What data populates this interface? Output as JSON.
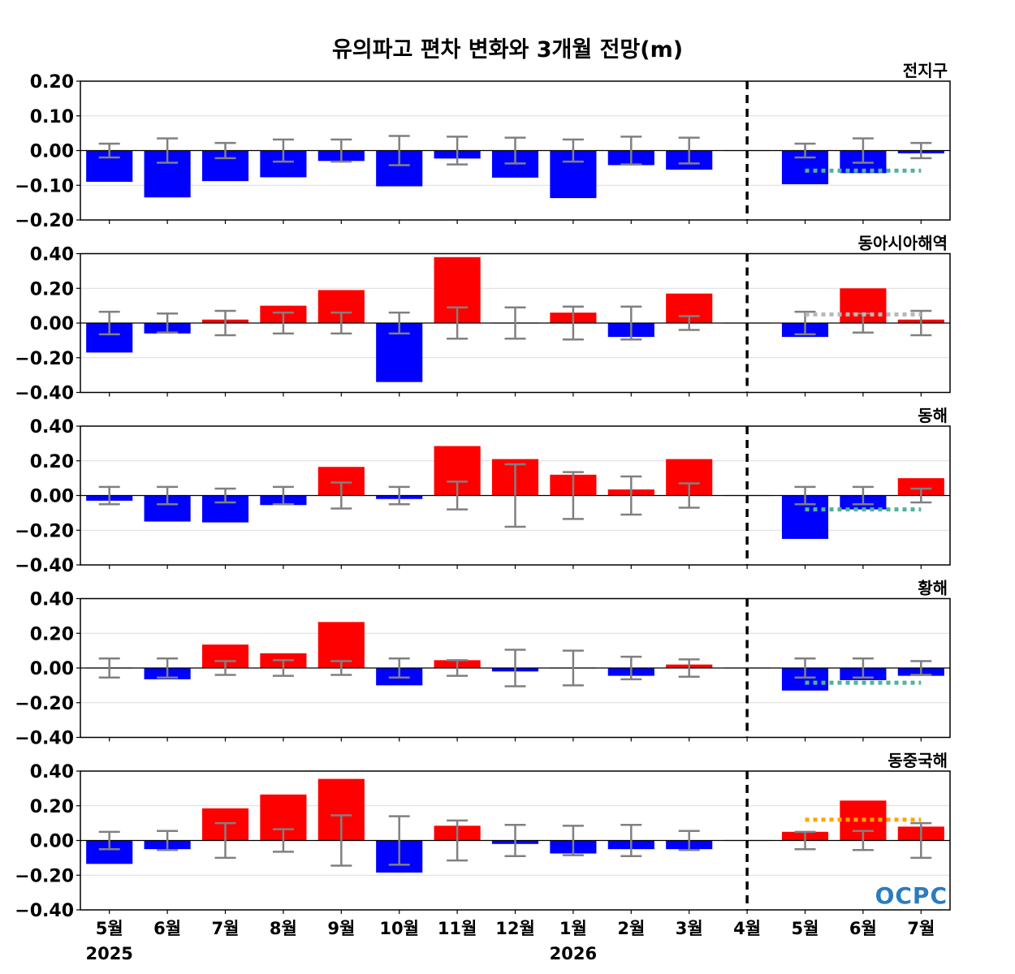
{
  "title": "유의파고 편차 변화와 3개월 전망(m)",
  "logo_text": "OCPC",
  "colors": {
    "positive": "#ff0000",
    "negative": "#0000ff",
    "errorbar": "#808080",
    "forecast_negative": "#4fb39b",
    "forecast_neutral": "#b8b8b8",
    "forecast_positive": "#ffa500",
    "divider": "#000000"
  },
  "chart_data": [
    {
      "type": "bar",
      "title": "전지구",
      "categories": [
        "5월",
        "6월",
        "7월",
        "8월",
        "9월",
        "10월",
        "11월",
        "12월",
        "1월",
        "2월",
        "3월",
        "4월",
        "5월",
        "6월",
        "7월"
      ],
      "values": [
        -0.09,
        -0.135,
        -0.088,
        -0.077,
        -0.03,
        -0.103,
        -0.023,
        -0.078,
        -0.137,
        -0.042,
        -0.055,
        0.0,
        -0.097,
        -0.065,
        -0.008
      ],
      "error_half_width": [
        0.02,
        0.035,
        0.022,
        0.032,
        0.032,
        0.042,
        0.04,
        0.037,
        0.032,
        0.04,
        0.037,
        null,
        0.02,
        0.035,
        0.022
      ],
      "forecast_line": {
        "from": "5월",
        "to": "7월",
        "value": -0.058,
        "color": "forecast_negative"
      },
      "ylim": [
        -0.2,
        0.2
      ],
      "yticks": [
        "0.20",
        "0.10",
        "0.00",
        "−0.10",
        "−0.20"
      ],
      "ytick_values": [
        0.2,
        0.1,
        0.0,
        -0.1,
        -0.2
      ]
    },
    {
      "type": "bar",
      "title": "동아시아해역",
      "categories": [
        "5월",
        "6월",
        "7월",
        "8월",
        "9월",
        "10월",
        "11월",
        "12월",
        "1월",
        "2월",
        "3월",
        "4월",
        "5월",
        "6월",
        "7월"
      ],
      "values": [
        -0.17,
        -0.06,
        0.02,
        0.1,
        0.19,
        -0.34,
        0.38,
        0.0,
        0.06,
        -0.08,
        0.17,
        0.0,
        -0.08,
        0.2,
        0.02
      ],
      "error_half_width": [
        0.065,
        0.055,
        0.07,
        0.06,
        0.06,
        0.06,
        0.09,
        0.09,
        0.095,
        0.095,
        0.04,
        null,
        0.065,
        0.055,
        0.07
      ],
      "forecast_line": {
        "from": "5월",
        "to": "7월",
        "value": 0.05,
        "color": "forecast_neutral"
      },
      "ylim": [
        -0.4,
        0.4
      ],
      "yticks": [
        "0.40",
        "0.20",
        "0.00",
        "−0.20",
        "−0.40"
      ],
      "ytick_values": [
        0.4,
        0.2,
        0.0,
        -0.2,
        -0.4
      ]
    },
    {
      "type": "bar",
      "title": "동해",
      "categories": [
        "5월",
        "6월",
        "7월",
        "8월",
        "9월",
        "10월",
        "11월",
        "12월",
        "1월",
        "2월",
        "3월",
        "4월",
        "5월",
        "6월",
        "7월"
      ],
      "values": [
        -0.03,
        -0.15,
        -0.155,
        -0.055,
        0.165,
        -0.02,
        0.285,
        0.21,
        0.12,
        0.035,
        0.21,
        0.0,
        -0.25,
        -0.08,
        0.1
      ],
      "error_half_width": [
        0.05,
        0.05,
        0.04,
        0.05,
        0.075,
        0.05,
        0.08,
        0.18,
        0.135,
        0.11,
        0.07,
        null,
        0.05,
        0.05,
        0.04
      ],
      "forecast_line": {
        "from": "5월",
        "to": "7월",
        "value": -0.08,
        "color": "forecast_negative"
      },
      "ylim": [
        -0.4,
        0.4
      ],
      "yticks": [
        "0.40",
        "0.20",
        "0.00",
        "−0.20",
        "−0.40"
      ],
      "ytick_values": [
        0.4,
        0.2,
        0.0,
        -0.2,
        -0.4
      ]
    },
    {
      "type": "bar",
      "title": "황해",
      "categories": [
        "5월",
        "6월",
        "7월",
        "8월",
        "9월",
        "10월",
        "11월",
        "12월",
        "1월",
        "2월",
        "3월",
        "4월",
        "5월",
        "6월",
        "7월"
      ],
      "values": [
        0.0,
        -0.065,
        0.135,
        0.085,
        0.265,
        -0.1,
        0.045,
        -0.02,
        0.0,
        -0.045,
        0.02,
        0.0,
        -0.13,
        -0.07,
        -0.045
      ],
      "error_half_width": [
        0.055,
        0.055,
        0.04,
        0.045,
        0.04,
        0.055,
        0.045,
        0.105,
        0.1,
        0.065,
        0.05,
        null,
        0.055,
        0.055,
        0.04
      ],
      "forecast_line": {
        "from": "5월",
        "to": "7월",
        "value": -0.085,
        "color": "forecast_negative"
      },
      "ylim": [
        -0.4,
        0.4
      ],
      "yticks": [
        "0.40",
        "0.20",
        "0.00",
        "−0.20",
        "−0.40"
      ],
      "ytick_values": [
        0.4,
        0.2,
        0.0,
        -0.2,
        -0.4
      ]
    },
    {
      "type": "bar",
      "title": "동중국해",
      "categories": [
        "5월",
        "6월",
        "7월",
        "8월",
        "9월",
        "10월",
        "11월",
        "12월",
        "1월",
        "2월",
        "3월",
        "4월",
        "5월",
        "6월",
        "7월"
      ],
      "values": [
        -0.135,
        -0.05,
        0.185,
        0.265,
        0.355,
        -0.185,
        0.085,
        -0.02,
        -0.075,
        -0.05,
        -0.05,
        0.0,
        0.05,
        0.23,
        0.08
      ],
      "error_half_width": [
        0.05,
        0.055,
        0.1,
        0.065,
        0.145,
        0.14,
        0.115,
        0.09,
        0.085,
        0.09,
        0.055,
        null,
        0.05,
        0.055,
        0.1
      ],
      "forecast_line": {
        "from": "5월",
        "to": "7월",
        "value": 0.12,
        "color": "forecast_positive"
      },
      "ylim": [
        -0.4,
        0.4
      ],
      "yticks": [
        "0.40",
        "0.20",
        "0.00",
        "−0.20",
        "−0.40"
      ],
      "ytick_values": [
        0.4,
        0.2,
        0.0,
        -0.2,
        -0.4
      ]
    }
  ],
  "x_axis": {
    "labels": [
      "5월",
      "6월",
      "7월",
      "8월",
      "9월",
      "10월",
      "11월",
      "12월",
      "1월",
      "2월",
      "3월",
      "4월",
      "5월",
      "6월",
      "7월"
    ],
    "year_labels": [
      {
        "text": "2025",
        "at": "5월"
      },
      {
        "text": "2026",
        "at": "1월"
      }
    ],
    "divider_at": "4월"
  }
}
